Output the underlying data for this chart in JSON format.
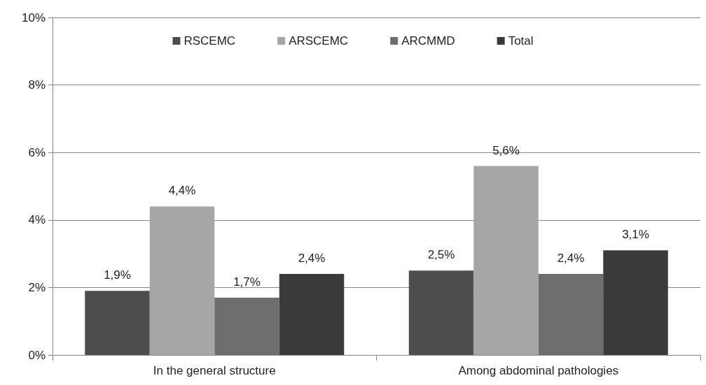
{
  "chart_data": {
    "type": "bar",
    "categories": [
      "In the general structure",
      "Among abdominal pathologies"
    ],
    "series": [
      {
        "name": "RSCEMC",
        "color": "#4d4d4d",
        "values": [
          1.9,
          2.5
        ],
        "value_labels": [
          "1,9%",
          "2,5%"
        ]
      },
      {
        "name": "ARSCEMC",
        "color": "#a6a6a6",
        "values": [
          4.4,
          5.6
        ],
        "value_labels": [
          "4,4%",
          "5,6%"
        ]
      },
      {
        "name": "ARCMMD",
        "color": "#6e6e6e",
        "values": [
          1.7,
          2.4
        ],
        "value_labels": [
          "1,7%",
          "2,4%"
        ]
      },
      {
        "name": "Total",
        "color": "#3a3a3a",
        "values": [
          2.4,
          3.1
        ],
        "value_labels": [
          "2,4%",
          "3,1%"
        ]
      }
    ],
    "ylim": [
      0,
      10
    ],
    "yticks": [
      {
        "value": 0,
        "label": "0%"
      },
      {
        "value": 2,
        "label": "2%"
      },
      {
        "value": 4,
        "label": "4%"
      },
      {
        "value": 6,
        "label": "6%"
      },
      {
        "value": 8,
        "label": "8%"
      },
      {
        "value": 10,
        "label": "10%"
      }
    ],
    "grid": "y",
    "legend": "top"
  }
}
